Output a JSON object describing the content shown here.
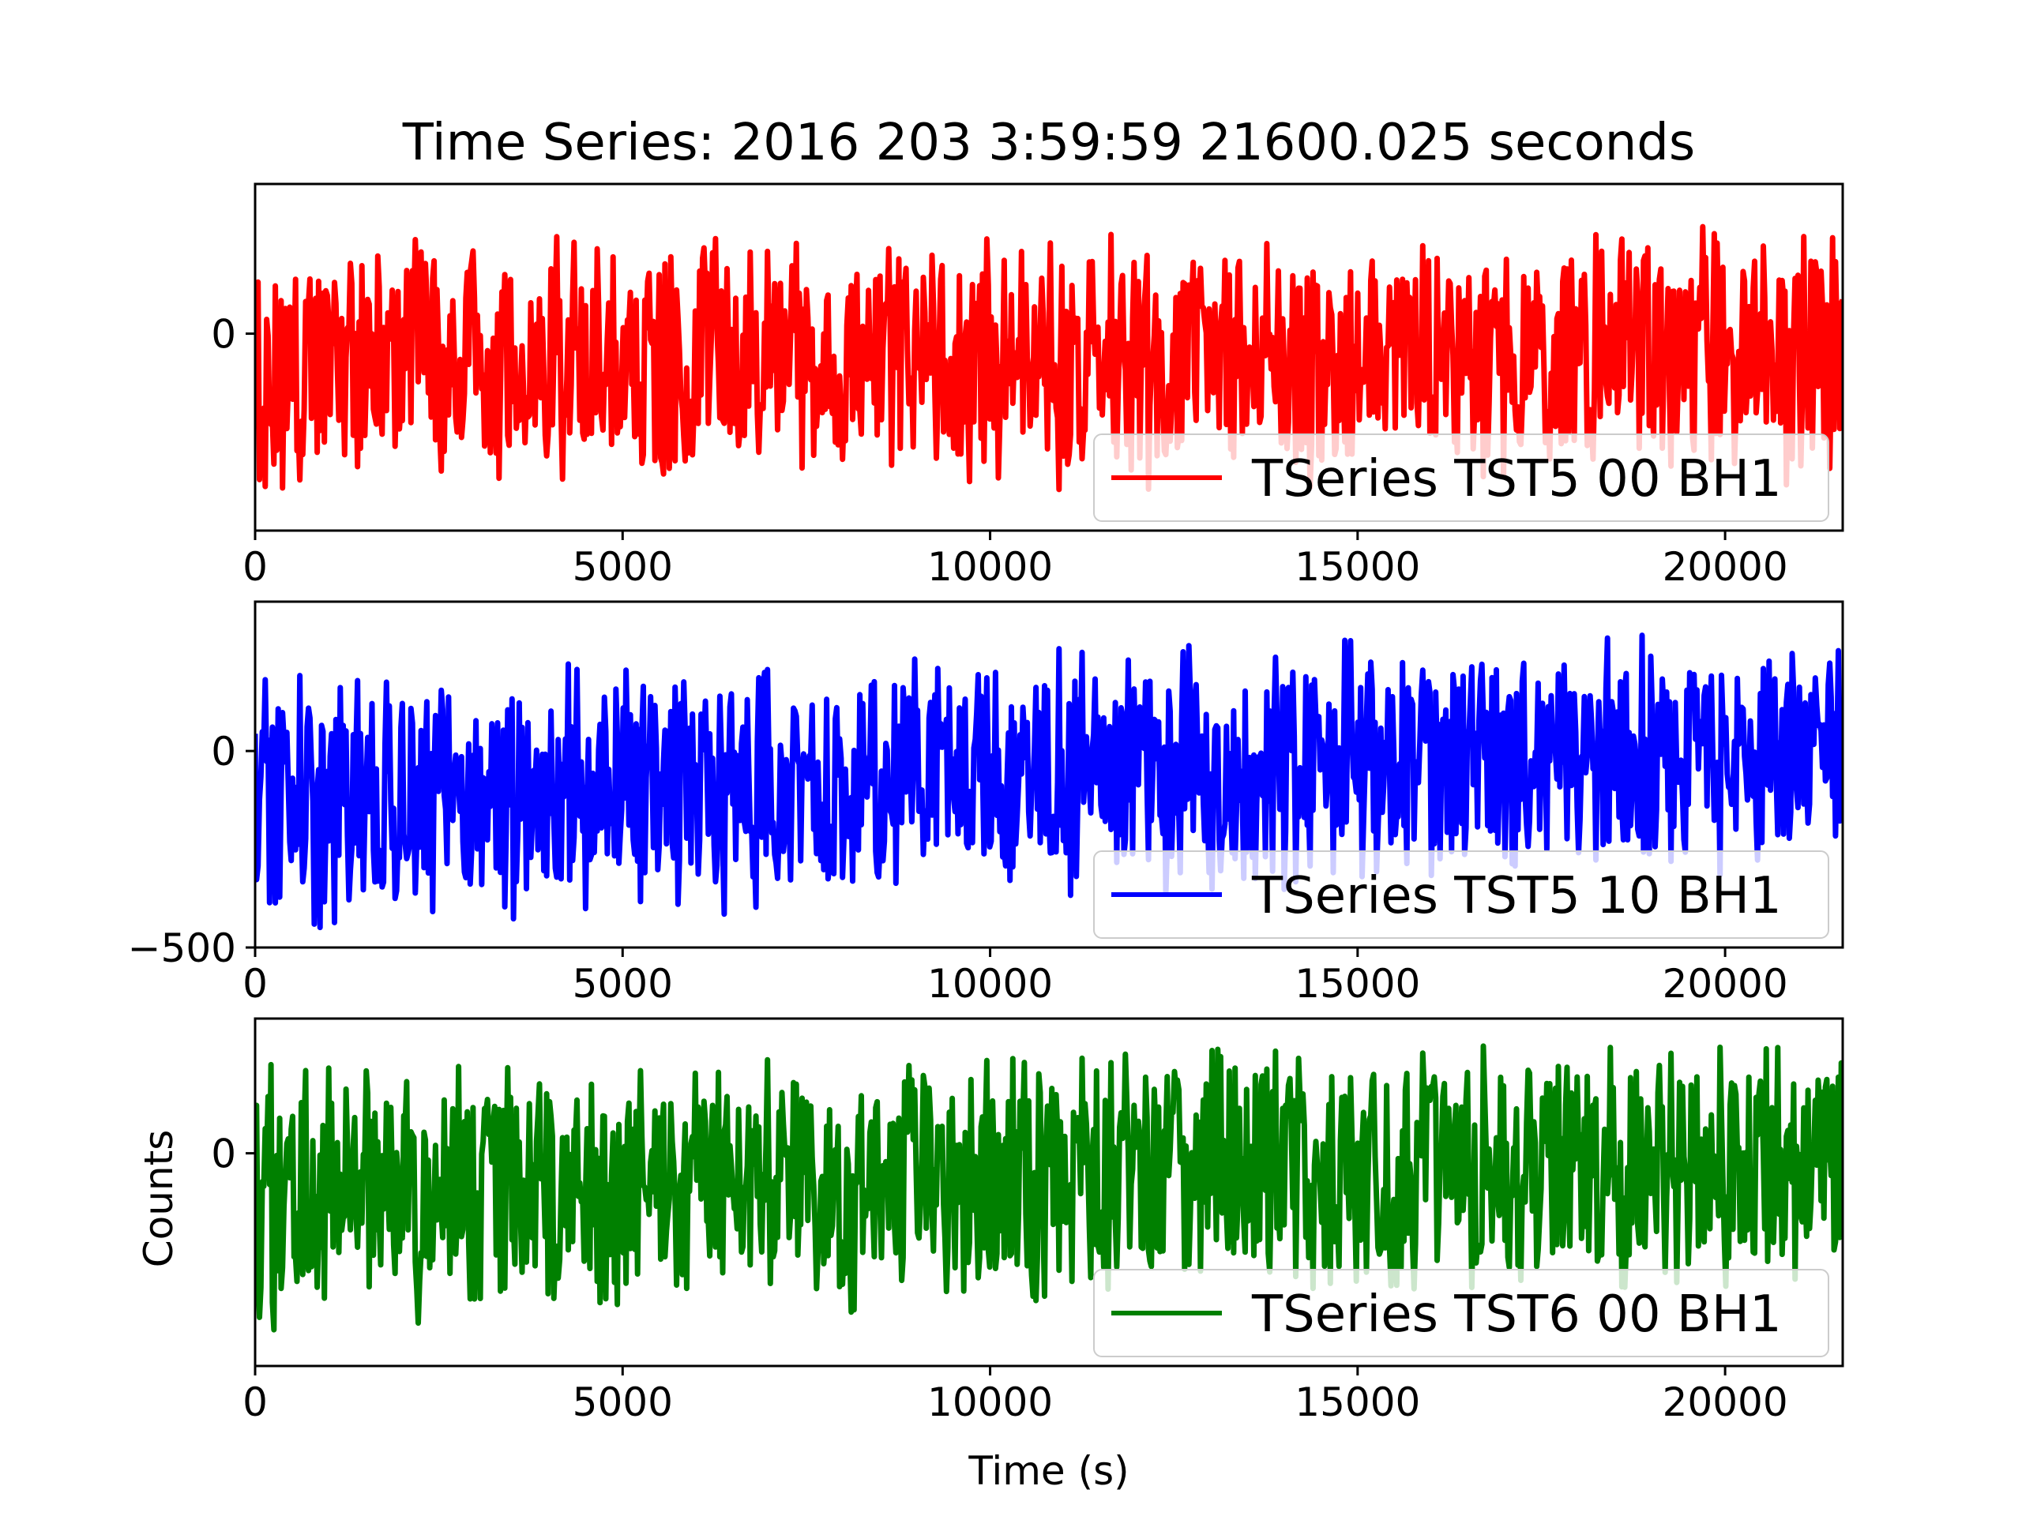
{
  "figure": {
    "title": "Time Series: 2016 203 3:59:59 21600.025 seconds",
    "xlabel": "Time (s)",
    "ylabel": "Counts"
  },
  "chart_data": [
    {
      "type": "line",
      "series": [
        {
          "name": "TSeries TST5 00 BH1",
          "color": "#ff0000"
        }
      ],
      "xlim": [
        0,
        21600
      ],
      "ylim": [
        -500,
        380
      ],
      "xticks": [
        0,
        5000,
        10000,
        15000,
        20000
      ],
      "yticks": [
        0
      ],
      "x_tick_labels": [
        "0",
        "5000",
        "10000",
        "15000",
        "20000"
      ],
      "y_tick_labels": [
        "0"
      ],
      "signal": {
        "mean_start": -40,
        "mean_end": -40,
        "low_start": -330,
        "low_end": -310,
        "high_start": 160,
        "high_end": 190
      },
      "legend": "lower right",
      "grid": false
    },
    {
      "type": "line",
      "series": [
        {
          "name": "TSeries TST5 10 BH1",
          "color": "#0000ff"
        }
      ],
      "xlim": [
        0,
        21600
      ],
      "ylim": [
        -500,
        380
      ],
      "xticks": [
        0,
        5000,
        10000,
        15000,
        20000
      ],
      "yticks": [
        -500,
        0
      ],
      "x_tick_labels": [
        "0",
        "5000",
        "10000",
        "15000",
        "20000"
      ],
      "y_tick_labels": [
        "−500",
        "0"
      ],
      "signal": {
        "mean_start": -140,
        "mean_end": -10,
        "low_start": -380,
        "low_end": -230,
        "high_start": 110,
        "high_end": 230
      },
      "legend": "lower right",
      "grid": false
    },
    {
      "type": "line",
      "series": [
        {
          "name": "TSeries TST6 00 BH1",
          "color": "#008000"
        }
      ],
      "xlim": [
        0,
        21600
      ],
      "ylim": [
        -600,
        380
      ],
      "xticks": [
        0,
        5000,
        10000,
        15000,
        20000
      ],
      "yticks": [
        0
      ],
      "x_tick_labels": [
        "0",
        "5000",
        "10000",
        "15000",
        "20000"
      ],
      "y_tick_labels": [
        "0"
      ],
      "signal": {
        "mean_start": -150,
        "mean_end": -40,
        "low_start": -420,
        "low_end": -290,
        "high_start": 160,
        "high_end": 240
      },
      "legend": "lower right",
      "grid": false
    }
  ]
}
